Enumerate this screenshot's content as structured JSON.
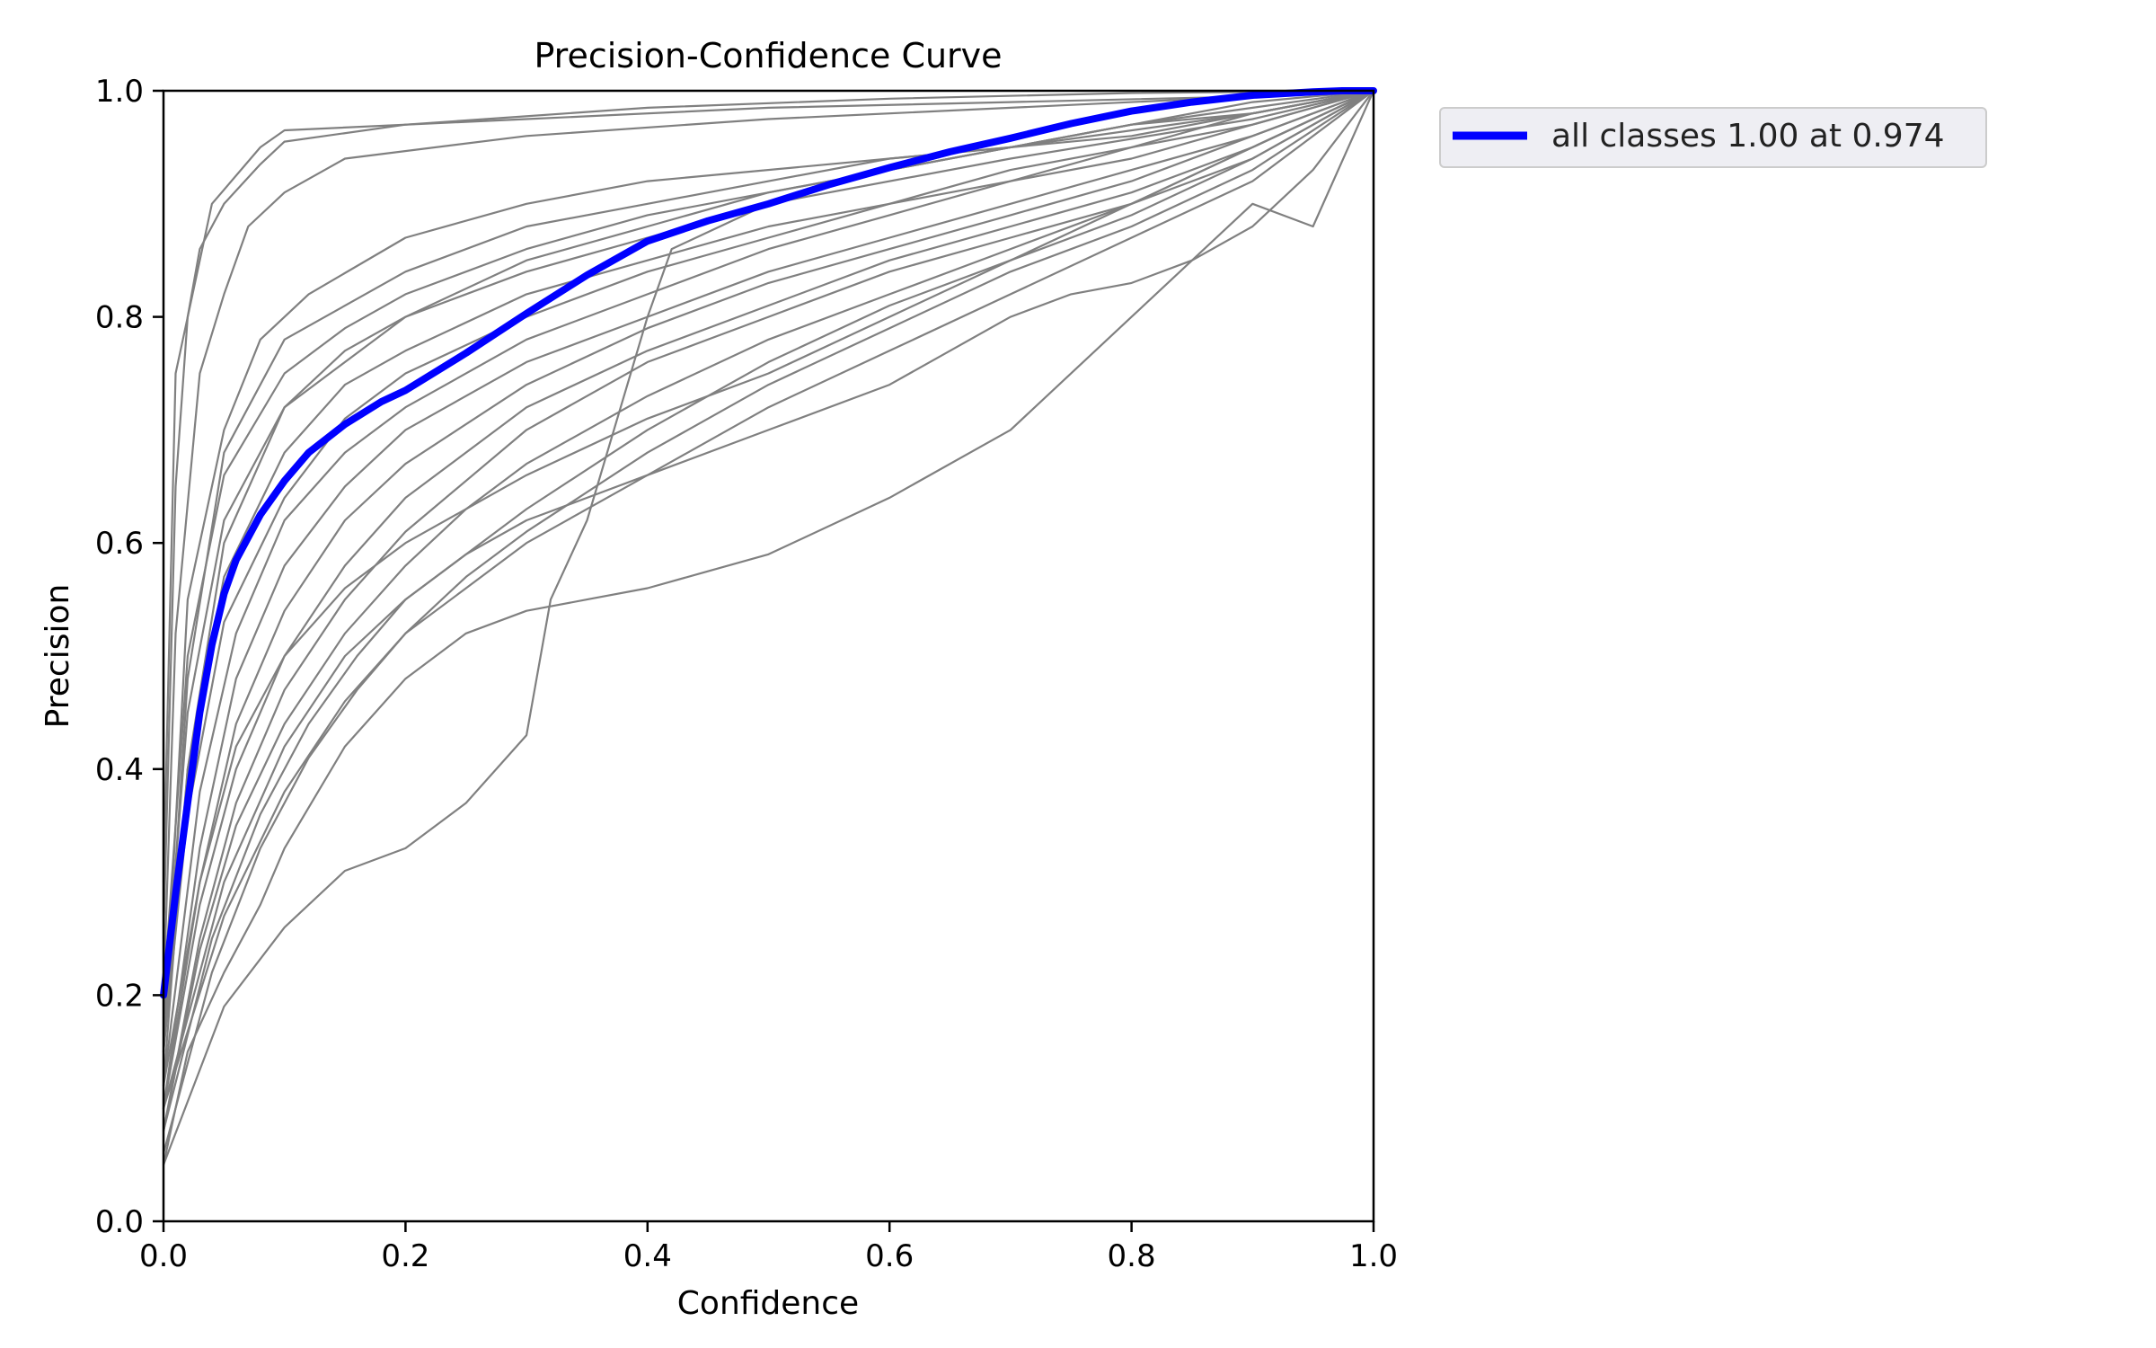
{
  "chart_data": {
    "type": "line",
    "title": "Precision-Confidence Curve",
    "xlabel": "Confidence",
    "ylabel": "Precision",
    "xlim": [
      0,
      1
    ],
    "ylim": [
      0,
      1
    ],
    "x_ticks": [
      "0.0",
      "0.2",
      "0.4",
      "0.6",
      "0.8",
      "1.0"
    ],
    "y_ticks": [
      "0.0",
      "0.2",
      "0.4",
      "0.6",
      "0.8",
      "1.0"
    ],
    "grid": false,
    "legend_position": "outside-upper-right",
    "colors": {
      "class_curves": "#808080",
      "all_classes": "#0000ff"
    },
    "legend": [
      {
        "label": "all classes 1.00 at 0.974",
        "color": "#0000ff"
      }
    ],
    "series": [
      {
        "name": "all classes 1.00 at 0.974",
        "highlight": true,
        "x": [
          0,
          0.01,
          0.02,
          0.03,
          0.04,
          0.05,
          0.06,
          0.08,
          0.1,
          0.12,
          0.15,
          0.18,
          0.2,
          0.25,
          0.3,
          0.35,
          0.4,
          0.45,
          0.5,
          0.55,
          0.6,
          0.65,
          0.7,
          0.75,
          0.8,
          0.85,
          0.9,
          0.95,
          0.974,
          1.0
        ],
        "y": [
          0.2,
          0.29,
          0.37,
          0.45,
          0.51,
          0.555,
          0.585,
          0.625,
          0.655,
          0.68,
          0.705,
          0.725,
          0.735,
          0.768,
          0.803,
          0.837,
          0.867,
          0.885,
          0.9,
          0.917,
          0.932,
          0.946,
          0.958,
          0.971,
          0.982,
          0.99,
          0.996,
          0.999,
          1.0,
          1.0
        ]
      },
      {
        "x": [
          0,
          0.01,
          0.02,
          0.03,
          0.05,
          0.08,
          0.1,
          0.2,
          0.4,
          0.6,
          0.8,
          1.0
        ],
        "y": [
          0.25,
          0.65,
          0.8,
          0.86,
          0.9,
          0.935,
          0.955,
          0.97,
          0.985,
          0.993,
          0.998,
          1.0
        ]
      },
      {
        "x": [
          0,
          0.01,
          0.03,
          0.05,
          0.07,
          0.1,
          0.15,
          0.3,
          0.5,
          0.7,
          0.9,
          1.0
        ],
        "y": [
          0.2,
          0.52,
          0.75,
          0.82,
          0.88,
          0.91,
          0.94,
          0.96,
          0.975,
          0.985,
          0.995,
          1.0
        ]
      },
      {
        "x": [
          0,
          0.02,
          0.05,
          0.08,
          0.12,
          0.2,
          0.3,
          0.4,
          0.6,
          0.8,
          0.9,
          1.0
        ],
        "y": [
          0.15,
          0.55,
          0.7,
          0.78,
          0.82,
          0.87,
          0.9,
          0.92,
          0.94,
          0.96,
          0.98,
          1.0
        ]
      },
      {
        "x": [
          0,
          0.02,
          0.05,
          0.1,
          0.15,
          0.2,
          0.3,
          0.4,
          0.5,
          0.7,
          0.9,
          1.0
        ],
        "y": [
          0.2,
          0.5,
          0.66,
          0.75,
          0.79,
          0.82,
          0.86,
          0.89,
          0.91,
          0.95,
          0.98,
          1.0
        ]
      },
      {
        "x": [
          0,
          0.02,
          0.05,
          0.1,
          0.15,
          0.2,
          0.3,
          0.4,
          0.5,
          0.7,
          0.9,
          1.0
        ],
        "y": [
          0.18,
          0.45,
          0.62,
          0.72,
          0.77,
          0.8,
          0.84,
          0.87,
          0.9,
          0.94,
          0.975,
          1.0
        ]
      },
      {
        "x": [
          0,
          0.02,
          0.05,
          0.1,
          0.15,
          0.2,
          0.3,
          0.4,
          0.5,
          0.6,
          0.7,
          0.8,
          0.9,
          1.0
        ],
        "y": [
          0.15,
          0.4,
          0.57,
          0.68,
          0.74,
          0.77,
          0.82,
          0.85,
          0.88,
          0.9,
          0.93,
          0.95,
          0.98,
          1.0
        ]
      },
      {
        "x": [
          0,
          0.02,
          0.05,
          0.1,
          0.15,
          0.2,
          0.3,
          0.4,
          0.5,
          0.6,
          0.7,
          0.8,
          0.9,
          1.0
        ],
        "y": [
          0.15,
          0.36,
          0.53,
          0.64,
          0.71,
          0.75,
          0.8,
          0.84,
          0.87,
          0.9,
          0.92,
          0.95,
          0.97,
          1.0
        ]
      },
      {
        "x": [
          0,
          0.03,
          0.06,
          0.1,
          0.15,
          0.2,
          0.3,
          0.4,
          0.5,
          0.6,
          0.7,
          0.8,
          0.9,
          1.0
        ],
        "y": [
          0.12,
          0.38,
          0.52,
          0.62,
          0.68,
          0.72,
          0.78,
          0.82,
          0.86,
          0.89,
          0.92,
          0.94,
          0.97,
          1.0
        ]
      },
      {
        "x": [
          0,
          0.03,
          0.06,
          0.1,
          0.15,
          0.2,
          0.3,
          0.4,
          0.5,
          0.6,
          0.7,
          0.8,
          0.9,
          1.0
        ],
        "y": [
          0.1,
          0.33,
          0.48,
          0.58,
          0.65,
          0.7,
          0.76,
          0.8,
          0.84,
          0.87,
          0.9,
          0.93,
          0.96,
          1.0
        ]
      },
      {
        "x": [
          0,
          0.03,
          0.06,
          0.1,
          0.15,
          0.2,
          0.3,
          0.4,
          0.5,
          0.6,
          0.7,
          0.8,
          0.9,
          1.0
        ],
        "y": [
          0.1,
          0.3,
          0.44,
          0.54,
          0.62,
          0.67,
          0.74,
          0.79,
          0.83,
          0.86,
          0.89,
          0.92,
          0.96,
          1.0
        ]
      },
      {
        "x": [
          0,
          0.03,
          0.06,
          0.1,
          0.15,
          0.2,
          0.3,
          0.4,
          0.5,
          0.6,
          0.7,
          0.8,
          0.9,
          1.0
        ],
        "y": [
          0.1,
          0.28,
          0.4,
          0.5,
          0.58,
          0.64,
          0.72,
          0.77,
          0.81,
          0.85,
          0.88,
          0.91,
          0.95,
          1.0
        ]
      },
      {
        "x": [
          0,
          0.03,
          0.06,
          0.1,
          0.15,
          0.2,
          0.3,
          0.4,
          0.5,
          0.6,
          0.7,
          0.8,
          0.9,
          1.0
        ],
        "y": [
          0.08,
          0.25,
          0.37,
          0.47,
          0.55,
          0.61,
          0.7,
          0.76,
          0.8,
          0.84,
          0.87,
          0.9,
          0.95,
          1.0
        ]
      },
      {
        "x": [
          0,
          0.03,
          0.06,
          0.1,
          0.15,
          0.2,
          0.25,
          0.3,
          0.4,
          0.5,
          0.6,
          0.7,
          0.8,
          0.9,
          1.0
        ],
        "y": [
          0.08,
          0.24,
          0.35,
          0.44,
          0.52,
          0.58,
          0.63,
          0.67,
          0.73,
          0.78,
          0.82,
          0.86,
          0.9,
          0.94,
          1.0
        ]
      },
      {
        "x": [
          0,
          0.04,
          0.08,
          0.12,
          0.16,
          0.2,
          0.3,
          0.4,
          0.5,
          0.6,
          0.7,
          0.8,
          0.9,
          1.0
        ],
        "y": [
          0.08,
          0.25,
          0.36,
          0.44,
          0.5,
          0.55,
          0.63,
          0.7,
          0.76,
          0.81,
          0.85,
          0.89,
          0.94,
          1.0
        ]
      },
      {
        "x": [
          0,
          0.04,
          0.08,
          0.12,
          0.16,
          0.2,
          0.25,
          0.3,
          0.4,
          0.5,
          0.6,
          0.7,
          0.8,
          0.9,
          1.0
        ],
        "y": [
          0.06,
          0.22,
          0.33,
          0.41,
          0.47,
          0.52,
          0.57,
          0.61,
          0.68,
          0.74,
          0.79,
          0.84,
          0.88,
          0.93,
          1.0
        ]
      },
      {
        "x": [
          0,
          0.02,
          0.05,
          0.1,
          0.2,
          0.3,
          0.4,
          0.5,
          0.6,
          0.7,
          0.8,
          0.9,
          1.0
        ],
        "y": [
          0.15,
          0.48,
          0.68,
          0.78,
          0.84,
          0.88,
          0.9,
          0.92,
          0.94,
          0.95,
          0.97,
          0.98,
          1.0
        ]
      },
      {
        "x": [
          0,
          0.02,
          0.05,
          0.1,
          0.2,
          0.3,
          0.4,
          0.5,
          0.6,
          0.7,
          0.8,
          0.9,
          1.0
        ],
        "y": [
          0.12,
          0.4,
          0.6,
          0.72,
          0.8,
          0.85,
          0.88,
          0.91,
          0.93,
          0.95,
          0.97,
          0.985,
          1.0
        ]
      },
      {
        "x": [
          0,
          0.01,
          0.04,
          0.08,
          0.1,
          0.3,
          0.5,
          0.7,
          0.9,
          1.0
        ],
        "y": [
          0.3,
          0.75,
          0.9,
          0.95,
          0.965,
          0.975,
          0.985,
          0.99,
          0.995,
          1.0
        ]
      },
      {
        "x": [
          0,
          0.05,
          0.1,
          0.15,
          0.2,
          0.25,
          0.3,
          0.32,
          0.35,
          0.4,
          0.42,
          0.5,
          0.6,
          0.7,
          0.8,
          0.9,
          1.0
        ],
        "y": [
          0.05,
          0.19,
          0.26,
          0.31,
          0.33,
          0.37,
          0.43,
          0.55,
          0.62,
          0.8,
          0.86,
          0.9,
          0.93,
          0.95,
          0.97,
          0.99,
          1.0
        ]
      },
      {
        "x": [
          0,
          0.02,
          0.05,
          0.08,
          0.1,
          0.15,
          0.2,
          0.25,
          0.3,
          0.35,
          0.4,
          0.5,
          0.6,
          0.7,
          0.8,
          0.9,
          0.95,
          1.0
        ],
        "y": [
          0.05,
          0.15,
          0.22,
          0.28,
          0.33,
          0.42,
          0.48,
          0.52,
          0.54,
          0.55,
          0.56,
          0.59,
          0.64,
          0.7,
          0.8,
          0.9,
          0.88,
          1.0
        ]
      },
      {
        "x": [
          0,
          0.05,
          0.1,
          0.15,
          0.2,
          0.25,
          0.3,
          0.35,
          0.4,
          0.5,
          0.6,
          0.65,
          0.7,
          0.75,
          0.8,
          0.85,
          0.9,
          0.95,
          1.0
        ],
        "y": [
          0.1,
          0.3,
          0.42,
          0.5,
          0.55,
          0.59,
          0.62,
          0.64,
          0.66,
          0.7,
          0.74,
          0.77,
          0.8,
          0.82,
          0.83,
          0.85,
          0.88,
          0.93,
          1.0
        ]
      },
      {
        "x": [
          0,
          0.03,
          0.06,
          0.1,
          0.15,
          0.2,
          0.3,
          0.4,
          0.5,
          0.6,
          0.7,
          0.8,
          0.9,
          1.0
        ],
        "y": [
          0.12,
          0.3,
          0.42,
          0.5,
          0.56,
          0.6,
          0.66,
          0.71,
          0.75,
          0.8,
          0.85,
          0.9,
          0.95,
          1.0
        ]
      },
      {
        "x": [
          0,
          0.05,
          0.1,
          0.15,
          0.2,
          0.25,
          0.3,
          0.4,
          0.5,
          0.6,
          0.7,
          0.8,
          0.9,
          1.0
        ],
        "y": [
          0.1,
          0.27,
          0.38,
          0.46,
          0.52,
          0.56,
          0.6,
          0.66,
          0.72,
          0.77,
          0.82,
          0.87,
          0.92,
          1.0
        ]
      }
    ]
  }
}
